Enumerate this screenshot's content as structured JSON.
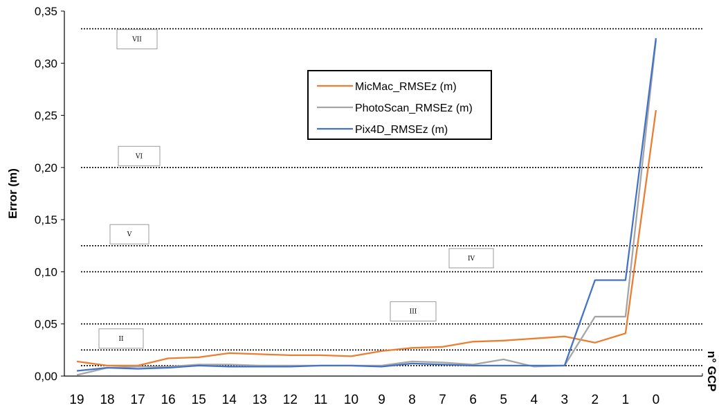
{
  "chart_data": {
    "type": "line",
    "title": "",
    "xlabel": "n° GCP",
    "ylabel": "Error (m)",
    "x": [
      19,
      18,
      17,
      16,
      15,
      14,
      13,
      12,
      11,
      10,
      9,
      8,
      7,
      6,
      5,
      4,
      3,
      2,
      1,
      0
    ],
    "x_tick_labels": [
      "19",
      "18",
      "17",
      "16",
      "15",
      "14",
      "13",
      "12",
      "11",
      "10",
      "9",
      "8",
      "7",
      "6",
      "5",
      "4",
      "3",
      "2",
      "1",
      "0"
    ],
    "ylim": [
      0,
      0.35
    ],
    "y_tick_labels": [
      "0,00",
      "0,05",
      "0,10",
      "0,15",
      "0,20",
      "0,25",
      "0,30",
      "0,35"
    ],
    "grid": false,
    "legend_position": "top-center",
    "series": [
      {
        "name": "MicMac_RMSEz (m)",
        "color": "#ED7D31",
        "values": [
          0.014,
          0.01,
          0.01,
          0.017,
          0.018,
          0.022,
          0.021,
          0.02,
          0.02,
          0.019,
          0.024,
          0.027,
          0.028,
          0.033,
          0.034,
          0.036,
          0.038,
          0.032,
          0.041,
          0.255
        ]
      },
      {
        "name": "PhotoScan_RMSEz (m)",
        "color": "#A5A5A5",
        "values": [
          0.001,
          0.008,
          0.009,
          0.009,
          0.011,
          0.011,
          0.01,
          0.01,
          0.01,
          0.01,
          0.01,
          0.014,
          0.013,
          0.011,
          0.016,
          0.009,
          0.01,
          0.057,
          0.057,
          0.322
        ]
      },
      {
        "name": "Pix4D_RMSEz (m)",
        "color": "#4472C4",
        "values": [
          0.005,
          0.008,
          0.007,
          0.008,
          0.01,
          0.009,
          0.009,
          0.009,
          0.01,
          0.01,
          0.009,
          0.012,
          0.011,
          0.01,
          0.01,
          0.01,
          0.01,
          0.092,
          0.092,
          0.324
        ]
      }
    ],
    "reference_lines": {
      "style": "dotted",
      "color": "#000000",
      "values": [
        0.01,
        0.025,
        0.05,
        0.1,
        0.125,
        0.2,
        0.333
      ]
    },
    "zones": [
      {
        "label": "II",
        "y": 0.036
      },
      {
        "label": "III",
        "y": 0.062
      },
      {
        "label": "IV",
        "y": 0.113
      },
      {
        "label": "V",
        "y": 0.136
      },
      {
        "label": "VI",
        "y": 0.211
      },
      {
        "label": "VII",
        "y": 0.323
      }
    ]
  }
}
